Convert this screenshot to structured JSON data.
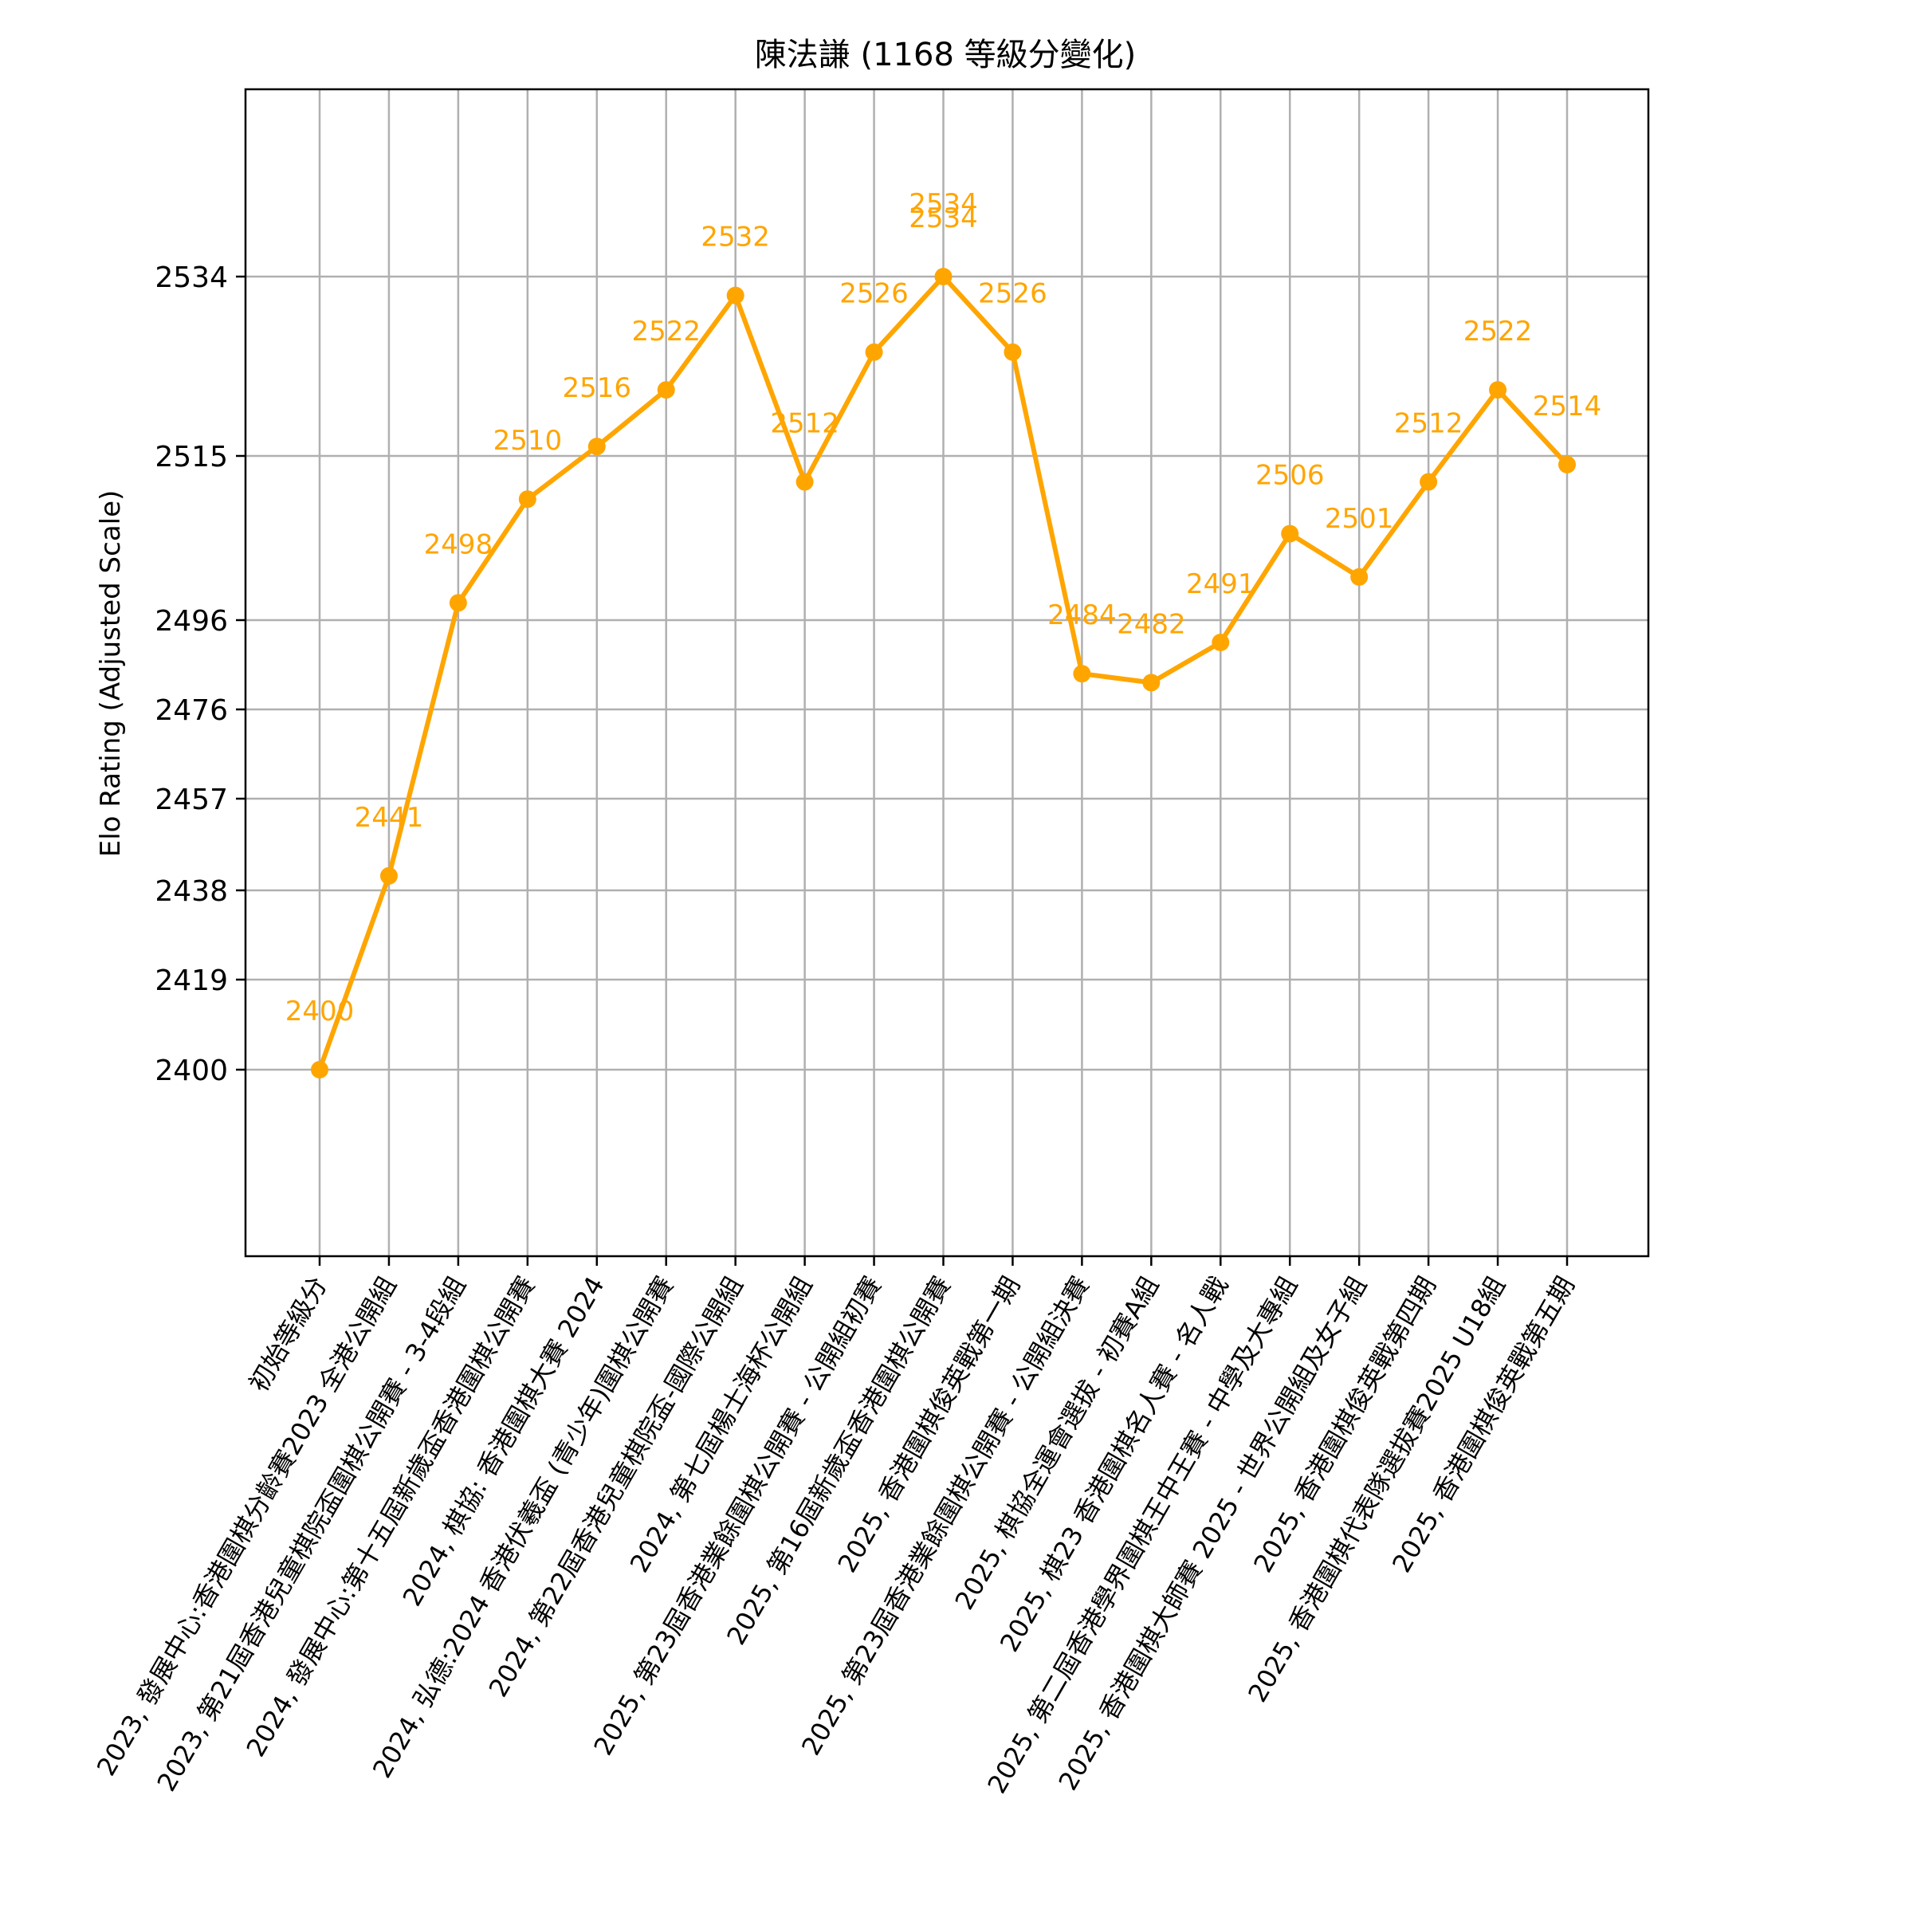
{
  "chart_data": {
    "type": "line",
    "title": "陳法謙 (1168 等級分變化)",
    "xlabel": "",
    "ylabel": "Elo Rating (Adjusted Scale)",
    "ylim": [
      2380,
      2560
    ],
    "color": "#ffa500",
    "grid": true,
    "legend": "none",
    "y_scale": "piecewise",
    "y_ticks": [
      2400,
      2419,
      2438,
      2457,
      2476,
      2496,
      2515,
      2534
    ],
    "categories": [
      "初始等級分",
      "2023, 發展中心:香港圍棋分齡賽2023 全港公開組",
      "2023, 第21屆香港兒童棋院盃圍棋公開賽 - 3-4段組",
      "2024, 發展中心:第十五屆新歲盃香港圍棋公開賽",
      "2024, 棋協: 香港圍棋大賽 2024",
      "2024, 弘德:2024 香港伏羲盃 (青少年)圍棋公開賽",
      "2024, 第22屆香港兒童棋院盃-國際公開組",
      "2024, 第七屆楊士海杯公開組",
      "2025, 第23屆香港業餘圍棋公開賽 - 公開組初賽",
      "2025, 第16屆新歲盃香港圍棋公開賽",
      "2025, 香港圍棋俊英戰第一期",
      "2025, 第23屆香港業餘圍棋公開賽 - 公開組決賽",
      "2025, 棋協全運會選拔 - 初賽A組",
      "2025, 棋23  香港圍棋名人賽 - 名人戰",
      "2025, 第二屆香港學界圍棋王中王賽 - 中學及大專組",
      "2025, 香港圍棋大師賽 2025 - 世界公開組及女子組",
      "2025, 香港圍棋俊英戰第四期",
      "2025, 香港圍棋代表隊選拔賽2025 U18組",
      "2025, 香港圍棋俊英戰第五期"
    ],
    "values": [
      2400,
      2441,
      2498,
      2510,
      2516,
      2522,
      2532,
      2512,
      2526,
      2534,
      2526,
      2484,
      2482,
      2491,
      2506,
      2501,
      2512,
      2522,
      2514
    ],
    "data_labels": [
      "2400",
      "2441",
      "2498",
      "2510",
      "2516",
      "2522",
      "2532",
      "2512",
      "2526",
      "2534",
      "2526",
      "2484",
      "2482",
      "2491",
      "2506",
      "2501",
      "2512",
      "2522",
      "2514"
    ],
    "data_label_extra": "2534"
  }
}
